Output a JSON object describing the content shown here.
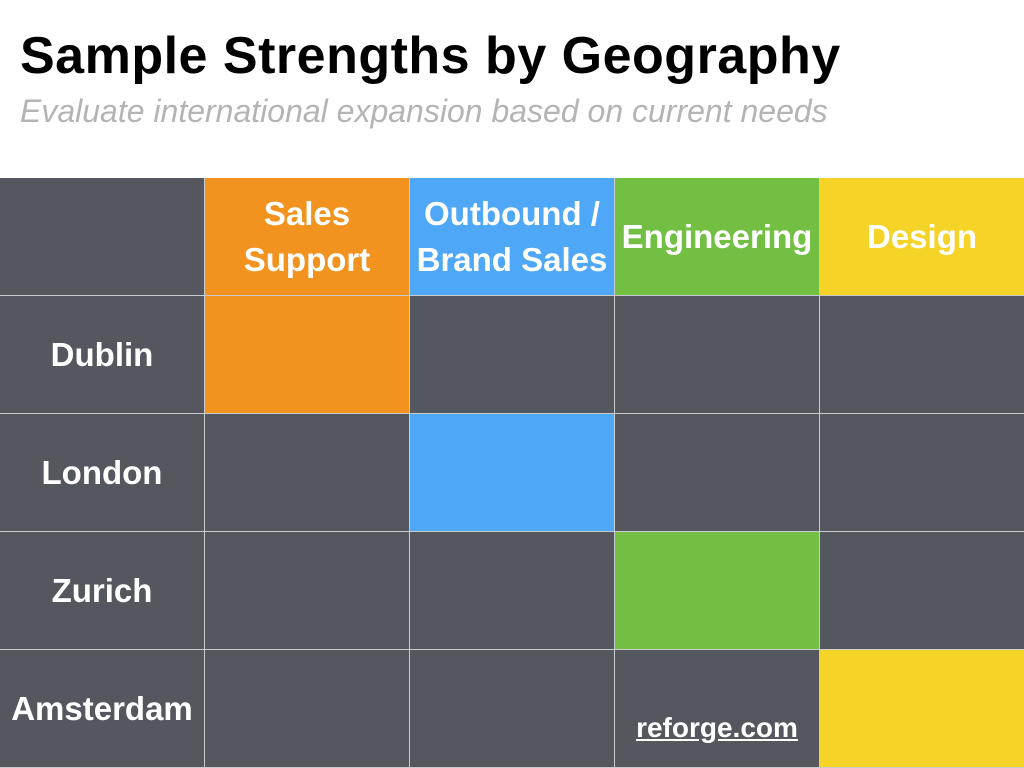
{
  "title": "Sample Strengths by Geography",
  "subtitle": "Evaluate international expansion based on current needs",
  "columns": [
    {
      "label": "Sales\nSupport",
      "color": "#f2921f"
    },
    {
      "label": "Outbound /\nBrand Sales",
      "color": "#4fa7f7"
    },
    {
      "label": "Engineering",
      "color": "#72bf44"
    },
    {
      "label": "Design",
      "color": "#f5d327"
    }
  ],
  "rows": [
    {
      "label": "Dublin",
      "strength_index": 0
    },
    {
      "label": "London",
      "strength_index": 1
    },
    {
      "label": "Zurich",
      "strength_index": 2
    },
    {
      "label": "Amsterdam",
      "strength_index": 3
    }
  ],
  "footer": {
    "link_text": "reforge.com"
  },
  "colors": {
    "cell": "#54585e",
    "gridline": "#c9cbce"
  }
}
